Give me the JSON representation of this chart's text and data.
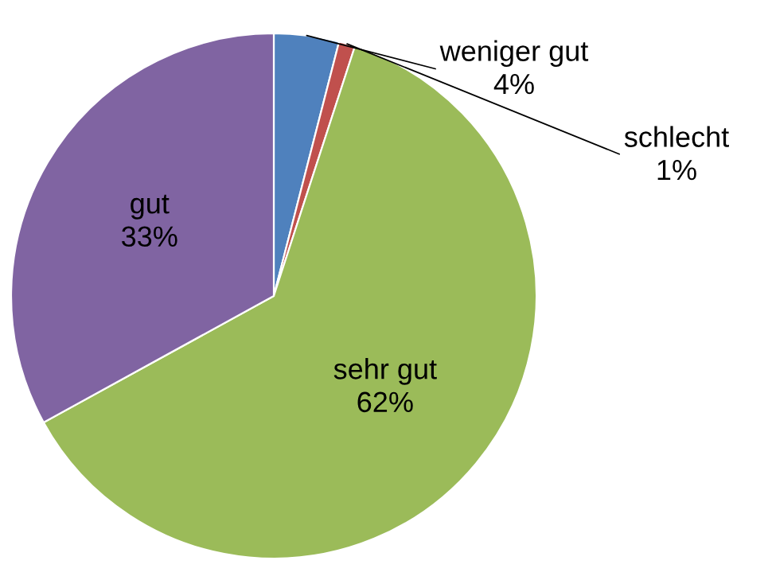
{
  "chart_data": {
    "type": "pie",
    "categories": [
      "weniger gut",
      "schlecht",
      "sehr gut",
      "gut"
    ],
    "values": [
      4,
      1,
      62,
      33
    ],
    "colors": [
      "#4f81bd",
      "#c0504d",
      "#9bbb59",
      "#8064a2"
    ],
    "value_labels": [
      "4%",
      "1%",
      "62%",
      "33%"
    ],
    "legend": false
  }
}
